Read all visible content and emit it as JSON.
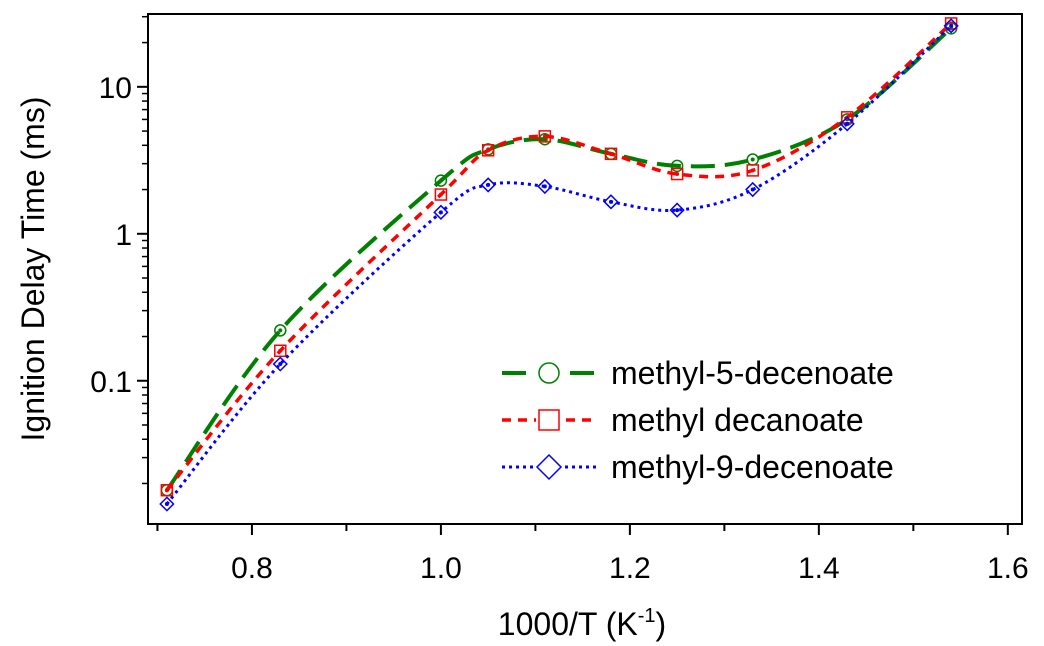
{
  "chart_data": {
    "type": "line",
    "title": "",
    "xlabel": "1000/T (K",
    "xlabel_sup": "-1",
    "xlabel_close": ")",
    "ylabel": "Ignition Delay Time (ms)",
    "xlim": [
      0.69,
      1.615
    ],
    "ylim": [
      0.0106,
      31.3
    ],
    "yscale": "log",
    "grid": false,
    "legend_position": "bottom-right",
    "x_ticks": [
      0.8,
      1.0,
      1.2,
      1.4,
      1.6
    ],
    "x_tick_labels": [
      "0.8",
      "1.0",
      "1.2",
      "1.4",
      "1.6"
    ],
    "y_ticks": [
      0.1,
      1,
      10
    ],
    "y_tick_labels": [
      "0.1",
      "1",
      "10"
    ],
    "series": [
      {
        "name": "methyl-5-decenoate",
        "color": "#008000",
        "dash": "long-dash",
        "marker": "circle",
        "x": [
          0.71,
          0.83,
          1.0,
          1.05,
          1.11,
          1.18,
          1.25,
          1.33,
          1.43,
          1.54
        ],
        "y": [
          0.018,
          0.22,
          2.3,
          3.75,
          4.4,
          3.5,
          2.9,
          3.2,
          6.0,
          25.0
        ]
      },
      {
        "name": "methyl decanoate",
        "color": "#ff0000",
        "dash": "dash",
        "marker": "square",
        "x": [
          0.71,
          0.83,
          1.0,
          1.05,
          1.11,
          1.18,
          1.25,
          1.33,
          1.43,
          1.54
        ],
        "y": [
          0.018,
          0.16,
          1.85,
          3.7,
          4.6,
          3.5,
          2.55,
          2.7,
          6.2,
          27.0
        ]
      },
      {
        "name": "methyl-9-decenoate",
        "color": "#0000ff",
        "dash": "dot",
        "marker": "diamond",
        "x": [
          0.71,
          0.83,
          1.0,
          1.05,
          1.11,
          1.18,
          1.25,
          1.33,
          1.43,
          1.54
        ],
        "y": [
          0.0145,
          0.13,
          1.4,
          2.15,
          2.1,
          1.65,
          1.45,
          2.0,
          5.6,
          26.0
        ]
      }
    ]
  }
}
